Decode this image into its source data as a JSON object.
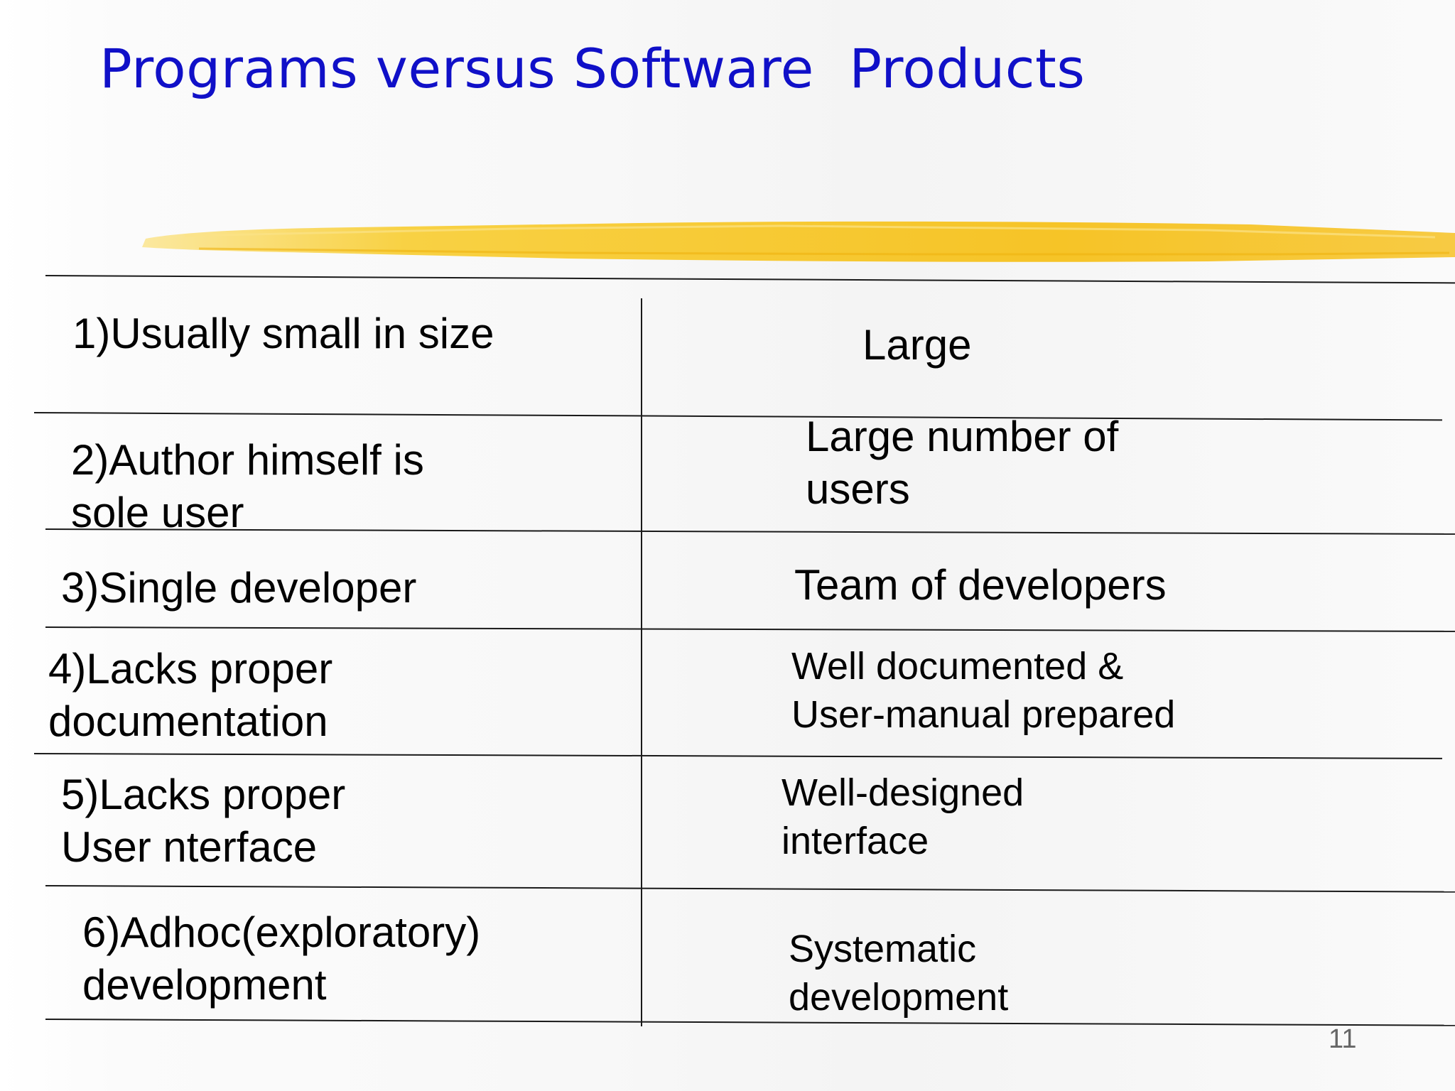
{
  "slide": {
    "title": "Programs versus Software  Products",
    "title_color": "#1010c8",
    "highlight_color": "#f7c41b",
    "page_number": "11"
  },
  "table": {
    "rows": [
      {
        "program": "1)Usually small in size",
        "product": "Large"
      },
      {
        "program": "2)Author himself is\nsole user",
        "product": "Large number of\nusers"
      },
      {
        "program": "3)Single developer",
        "product": "Team of developers"
      },
      {
        "program": "4)Lacks proper\ndocumentation",
        "product": "Well documented &\nUser-manual prepared"
      },
      {
        "program": "5)Lacks proper\nUser nterface",
        "product": "Well-designed\ninterface"
      },
      {
        "program": "6)Adhoc(exploratory)\ndevelopment",
        "product": "Systematic\ndevelopment"
      }
    ]
  }
}
